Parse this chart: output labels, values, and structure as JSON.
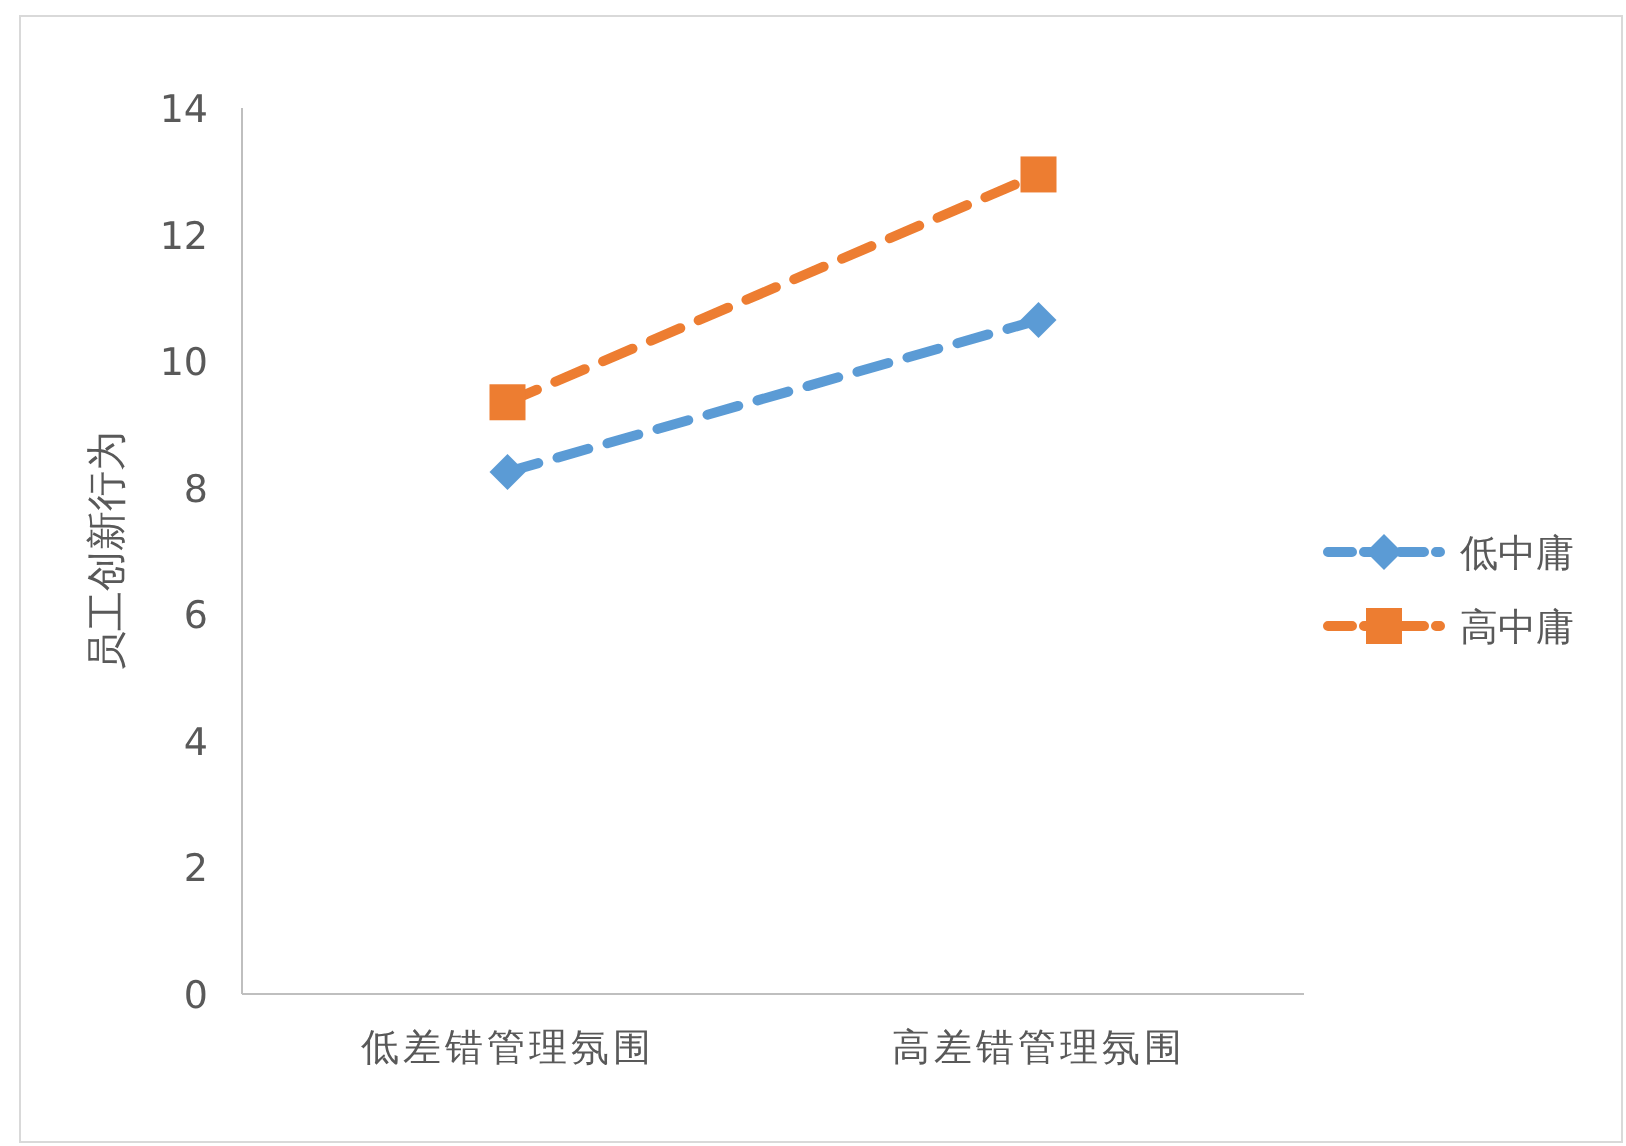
{
  "chart_data": {
    "type": "line",
    "ylabel": "员工创新行为",
    "categories": [
      "低差错管理氛围",
      "高差错管理氛围"
    ],
    "series": [
      {
        "name": "低中庸",
        "color": "#5b9bd5",
        "values": [
          8.25,
          10.65
        ],
        "marker": "diamond"
      },
      {
        "name": "高中庸",
        "color": "#ed7d31",
        "values": [
          9.35,
          12.95
        ],
        "marker": "square"
      }
    ],
    "ylim": [
      0,
      14
    ],
    "yticks": [
      0,
      2,
      4,
      6,
      8,
      10,
      12,
      14
    ],
    "grid": false,
    "legend": "right",
    "line_style": "dashed"
  }
}
